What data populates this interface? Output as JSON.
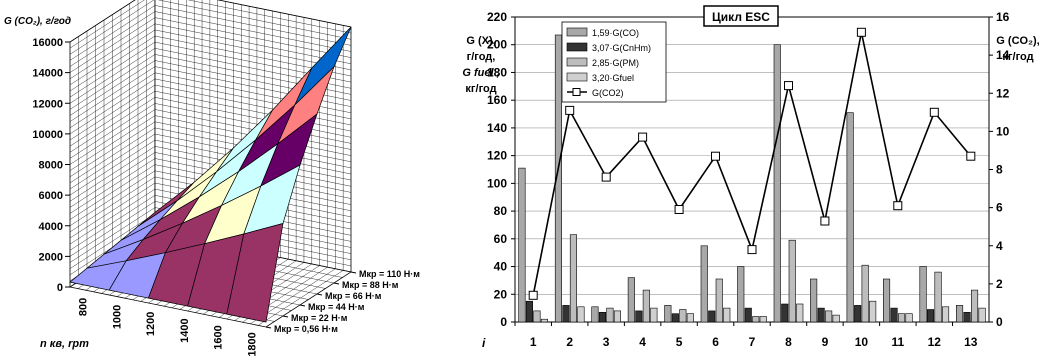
{
  "chart_data": [
    {
      "type": "surface3d",
      "z_axis_label": "G (CO₂), г/год",
      "x_axis_label": "n кв, rpm",
      "z_ticks": [
        "0",
        "2000",
        "4000",
        "6000",
        "8000",
        "10000",
        "12000",
        "14000",
        "16000"
      ],
      "z_range": [
        0,
        16000
      ],
      "x_ticks": [
        "800",
        "1000",
        "1200",
        "1400",
        "1600",
        "1800"
      ],
      "torque_labels": [
        "Мкр = 110 Н·м",
        "Мкр = 88 Н·м",
        "Мкр = 66 Н·м",
        "Мкр = 44 Н·м",
        "Мкр = 22 Н·м",
        "Мкр = 0,56 Н·м"
      ],
      "band_colors": [
        "#9999ff",
        "#993366",
        "#ffffcc",
        "#ccffff",
        "#660066",
        "#ff8080",
        "#0066cc",
        "#ccccff"
      ],
      "grid": true
    },
    {
      "type": "bar+line",
      "title": "Цикл ESC",
      "left_axis_label": [
        "G (X),",
        "г/год,",
        "G fuel ,",
        "кг/год"
      ],
      "right_axis_label": [
        "G (CO₂),",
        "кг/год"
      ],
      "x_label": "i",
      "categories": [
        "1",
        "2",
        "3",
        "4",
        "5",
        "6",
        "7",
        "8",
        "9",
        "10",
        "11",
        "12",
        "13"
      ],
      "ylim_left": [
        0,
        220
      ],
      "yticks_left": [
        "0",
        "20",
        "40",
        "60",
        "80",
        "100",
        "120",
        "140",
        "160",
        "180",
        "200",
        "220"
      ],
      "ylim_right": [
        0,
        16
      ],
      "yticks_right": [
        "0",
        "2",
        "4",
        "6",
        "8",
        "10",
        "12",
        "14",
        "16"
      ],
      "series": [
        {
          "name": "1,59·G(CO)",
          "color": "#a8a8a8",
          "values": [
            111,
            207,
            11,
            32,
            12,
            55,
            40,
            200,
            31,
            151,
            31,
            40,
            12
          ]
        },
        {
          "name": "3,07·G(CnHm)",
          "color": "#333333",
          "values": [
            15,
            12,
            7,
            8,
            6,
            8,
            10,
            13,
            10,
            12,
            10,
            9,
            7
          ]
        },
        {
          "name": "2,85·G(PM)",
          "color": "#bdbdbd",
          "values": [
            8,
            63,
            10,
            23,
            9,
            31,
            4,
            59,
            8,
            41,
            6,
            36,
            23
          ]
        },
        {
          "name": "3,20·Gfuel",
          "color": "#d0d0d0",
          "values": [
            2,
            11,
            8,
            10,
            6,
            10,
            4,
            13,
            5,
            15,
            6,
            11,
            10
          ]
        }
      ],
      "line_series": {
        "name": "G(CO2)",
        "axis": "right",
        "values": [
          1.4,
          11.1,
          7.6,
          9.7,
          5.9,
          8.7,
          3.8,
          12.4,
          5.3,
          15.2,
          6.1,
          11.0,
          8.7
        ]
      },
      "legend_position": "top-left",
      "grid": true
    }
  ]
}
